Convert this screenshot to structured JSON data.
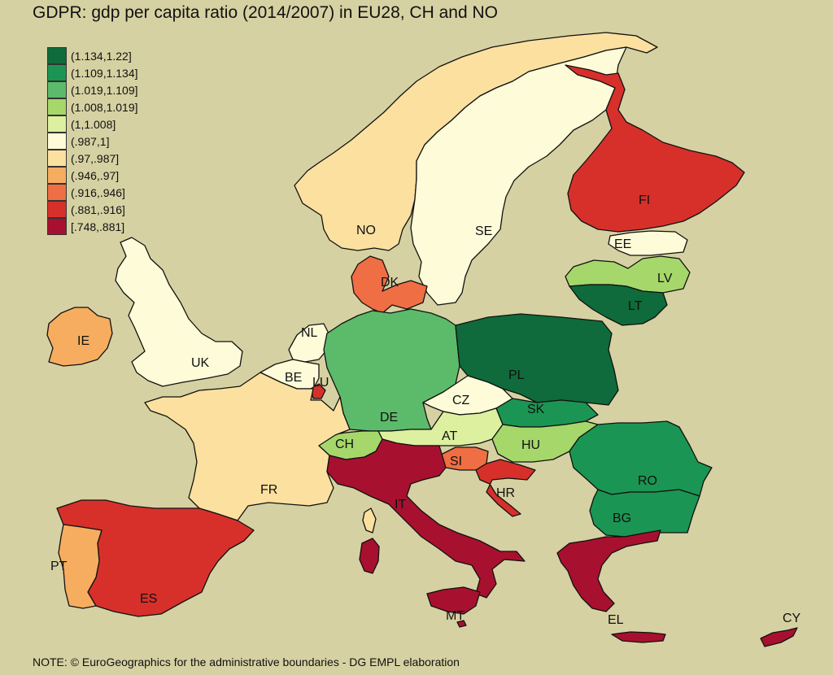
{
  "title": "GDPR: gdp per capita ratio (2014/2007) in EU28, CH and NO",
  "note": "NOTE: © EuroGeographics for the administrative boundaries - DG EMPL elaboration",
  "legend": [
    {
      "label": "(1.134,1.22]",
      "color": "#0f6b3b"
    },
    {
      "label": "(1.109,1.134]",
      "color": "#1b9553"
    },
    {
      "label": "(1.019,1.109]",
      "color": "#5cbb6a"
    },
    {
      "label": "(1.008,1.019]",
      "color": "#a6d76b"
    },
    {
      "label": "(1,1.008]",
      "color": "#dcf0a0"
    },
    {
      "label": "(.987,1]",
      "color": "#fdfbd8"
    },
    {
      "label": "(.97,.987]",
      "color": "#fbe0a0"
    },
    {
      "label": "(.946,.97]",
      "color": "#f6ad60"
    },
    {
      "label": "(.916,.946]",
      "color": "#ef6e43"
    },
    {
      "label": "(.881,.916]",
      "color": "#d7302b"
    },
    {
      "label": "[.748,.881]",
      "color": "#a8102f"
    }
  ],
  "countries": [
    {
      "code": "NO",
      "bin": 6
    },
    {
      "code": "SE",
      "bin": 5
    },
    {
      "code": "FI",
      "bin": 9
    },
    {
      "code": "EE",
      "bin": 5
    },
    {
      "code": "LV",
      "bin": 3
    },
    {
      "code": "LT",
      "bin": 0
    },
    {
      "code": "DK",
      "bin": 8
    },
    {
      "code": "IE",
      "bin": 7
    },
    {
      "code": "UK",
      "bin": 5
    },
    {
      "code": "NL",
      "bin": 5
    },
    {
      "code": "BE",
      "bin": 5
    },
    {
      "code": "LU",
      "bin": 9
    },
    {
      "code": "DE",
      "bin": 2
    },
    {
      "code": "PL",
      "bin": 0
    },
    {
      "code": "CZ",
      "bin": 5
    },
    {
      "code": "SK",
      "bin": 1
    },
    {
      "code": "AT",
      "bin": 4
    },
    {
      "code": "HU",
      "bin": 3
    },
    {
      "code": "CH",
      "bin": 3
    },
    {
      "code": "SI",
      "bin": 8
    },
    {
      "code": "HR",
      "bin": 9
    },
    {
      "code": "RO",
      "bin": 1
    },
    {
      "code": "BG",
      "bin": 1
    },
    {
      "code": "FR",
      "bin": 6
    },
    {
      "code": "IT",
      "bin": 10
    },
    {
      "code": "MT",
      "bin": 10
    },
    {
      "code": "EL",
      "bin": 10
    },
    {
      "code": "CY",
      "bin": 10
    },
    {
      "code": "ES",
      "bin": 9
    },
    {
      "code": "PT",
      "bin": 7
    }
  ]
}
